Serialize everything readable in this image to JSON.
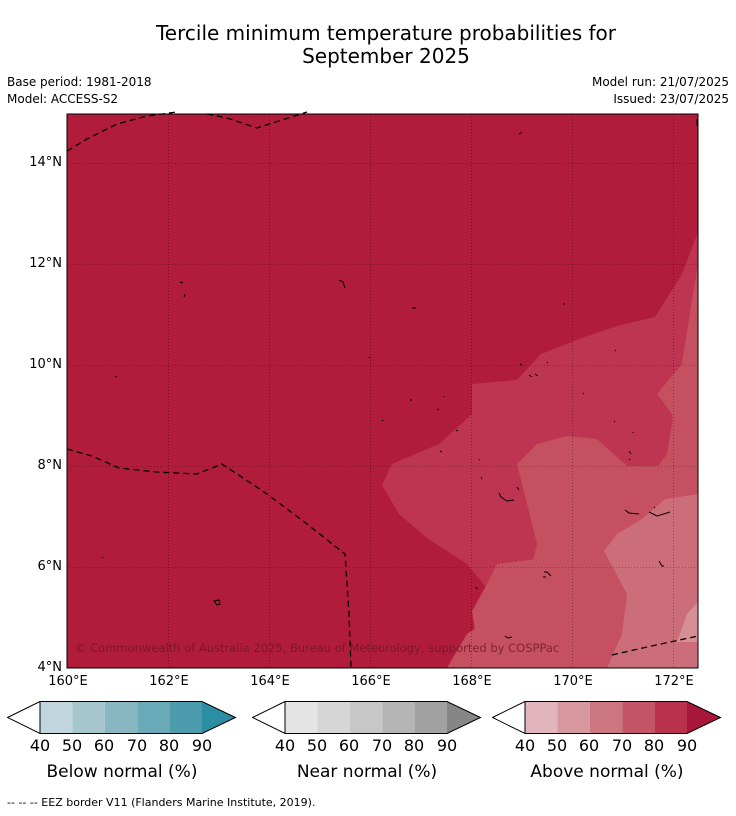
{
  "title_line1": "Tercile minimum temperature probabilities for",
  "title_line2": "September 2025",
  "base_period": "Base period: 1981-2018",
  "model": "Model: ACCESS-S2",
  "model_run": "Model run: 21/07/2025",
  "issued": "Issued: 23/07/2025",
  "map": {
    "lat_labels": [
      "14°N",
      "12°N",
      "10°N",
      "8°N",
      "6°N",
      "4°N"
    ],
    "lon_labels": [
      "160°E",
      "162°E",
      "164°E",
      "166°E",
      "168°E",
      "170°E",
      "172°E"
    ],
    "copyright": "© Commonwealth of Australia 2025, Bureau of Meteorology, supported by COSPPac",
    "colors": {
      "above_90": "#b01c3a",
      "above_80": "#bd3550",
      "above_70": "#c5505f",
      "above_60": "#cc6e79",
      "above_50": "#d68f97"
    }
  },
  "colorbars": [
    {
      "title": "Below normal (%)",
      "ticks": [
        "40",
        "50",
        "60",
        "70",
        "80",
        "90"
      ],
      "colors": [
        "#c0d6dc",
        "#a6c6cd",
        "#88b6c1",
        "#6aaab8",
        "#4b9bac",
        "#2b8ea2"
      ]
    },
    {
      "title": "Near normal (%)",
      "ticks": [
        "40",
        "50",
        "60",
        "70",
        "80",
        "90"
      ],
      "colors": [
        "#e4e4e4",
        "#d6d6d6",
        "#c7c7c7",
        "#b5b5b5",
        "#a1a1a1",
        "#868686"
      ]
    },
    {
      "title": "Above normal (%)",
      "ticks": [
        "40",
        "50",
        "60",
        "70",
        "80",
        "90"
      ],
      "colors": [
        "#e1b5bb",
        "#d6979f",
        "#cc7680",
        "#c55566",
        "#b9324d",
        "#a8173a"
      ]
    }
  ],
  "footnote": "--  --  -- EEZ border V11 (Flanders Marine Institute, 2019)."
}
